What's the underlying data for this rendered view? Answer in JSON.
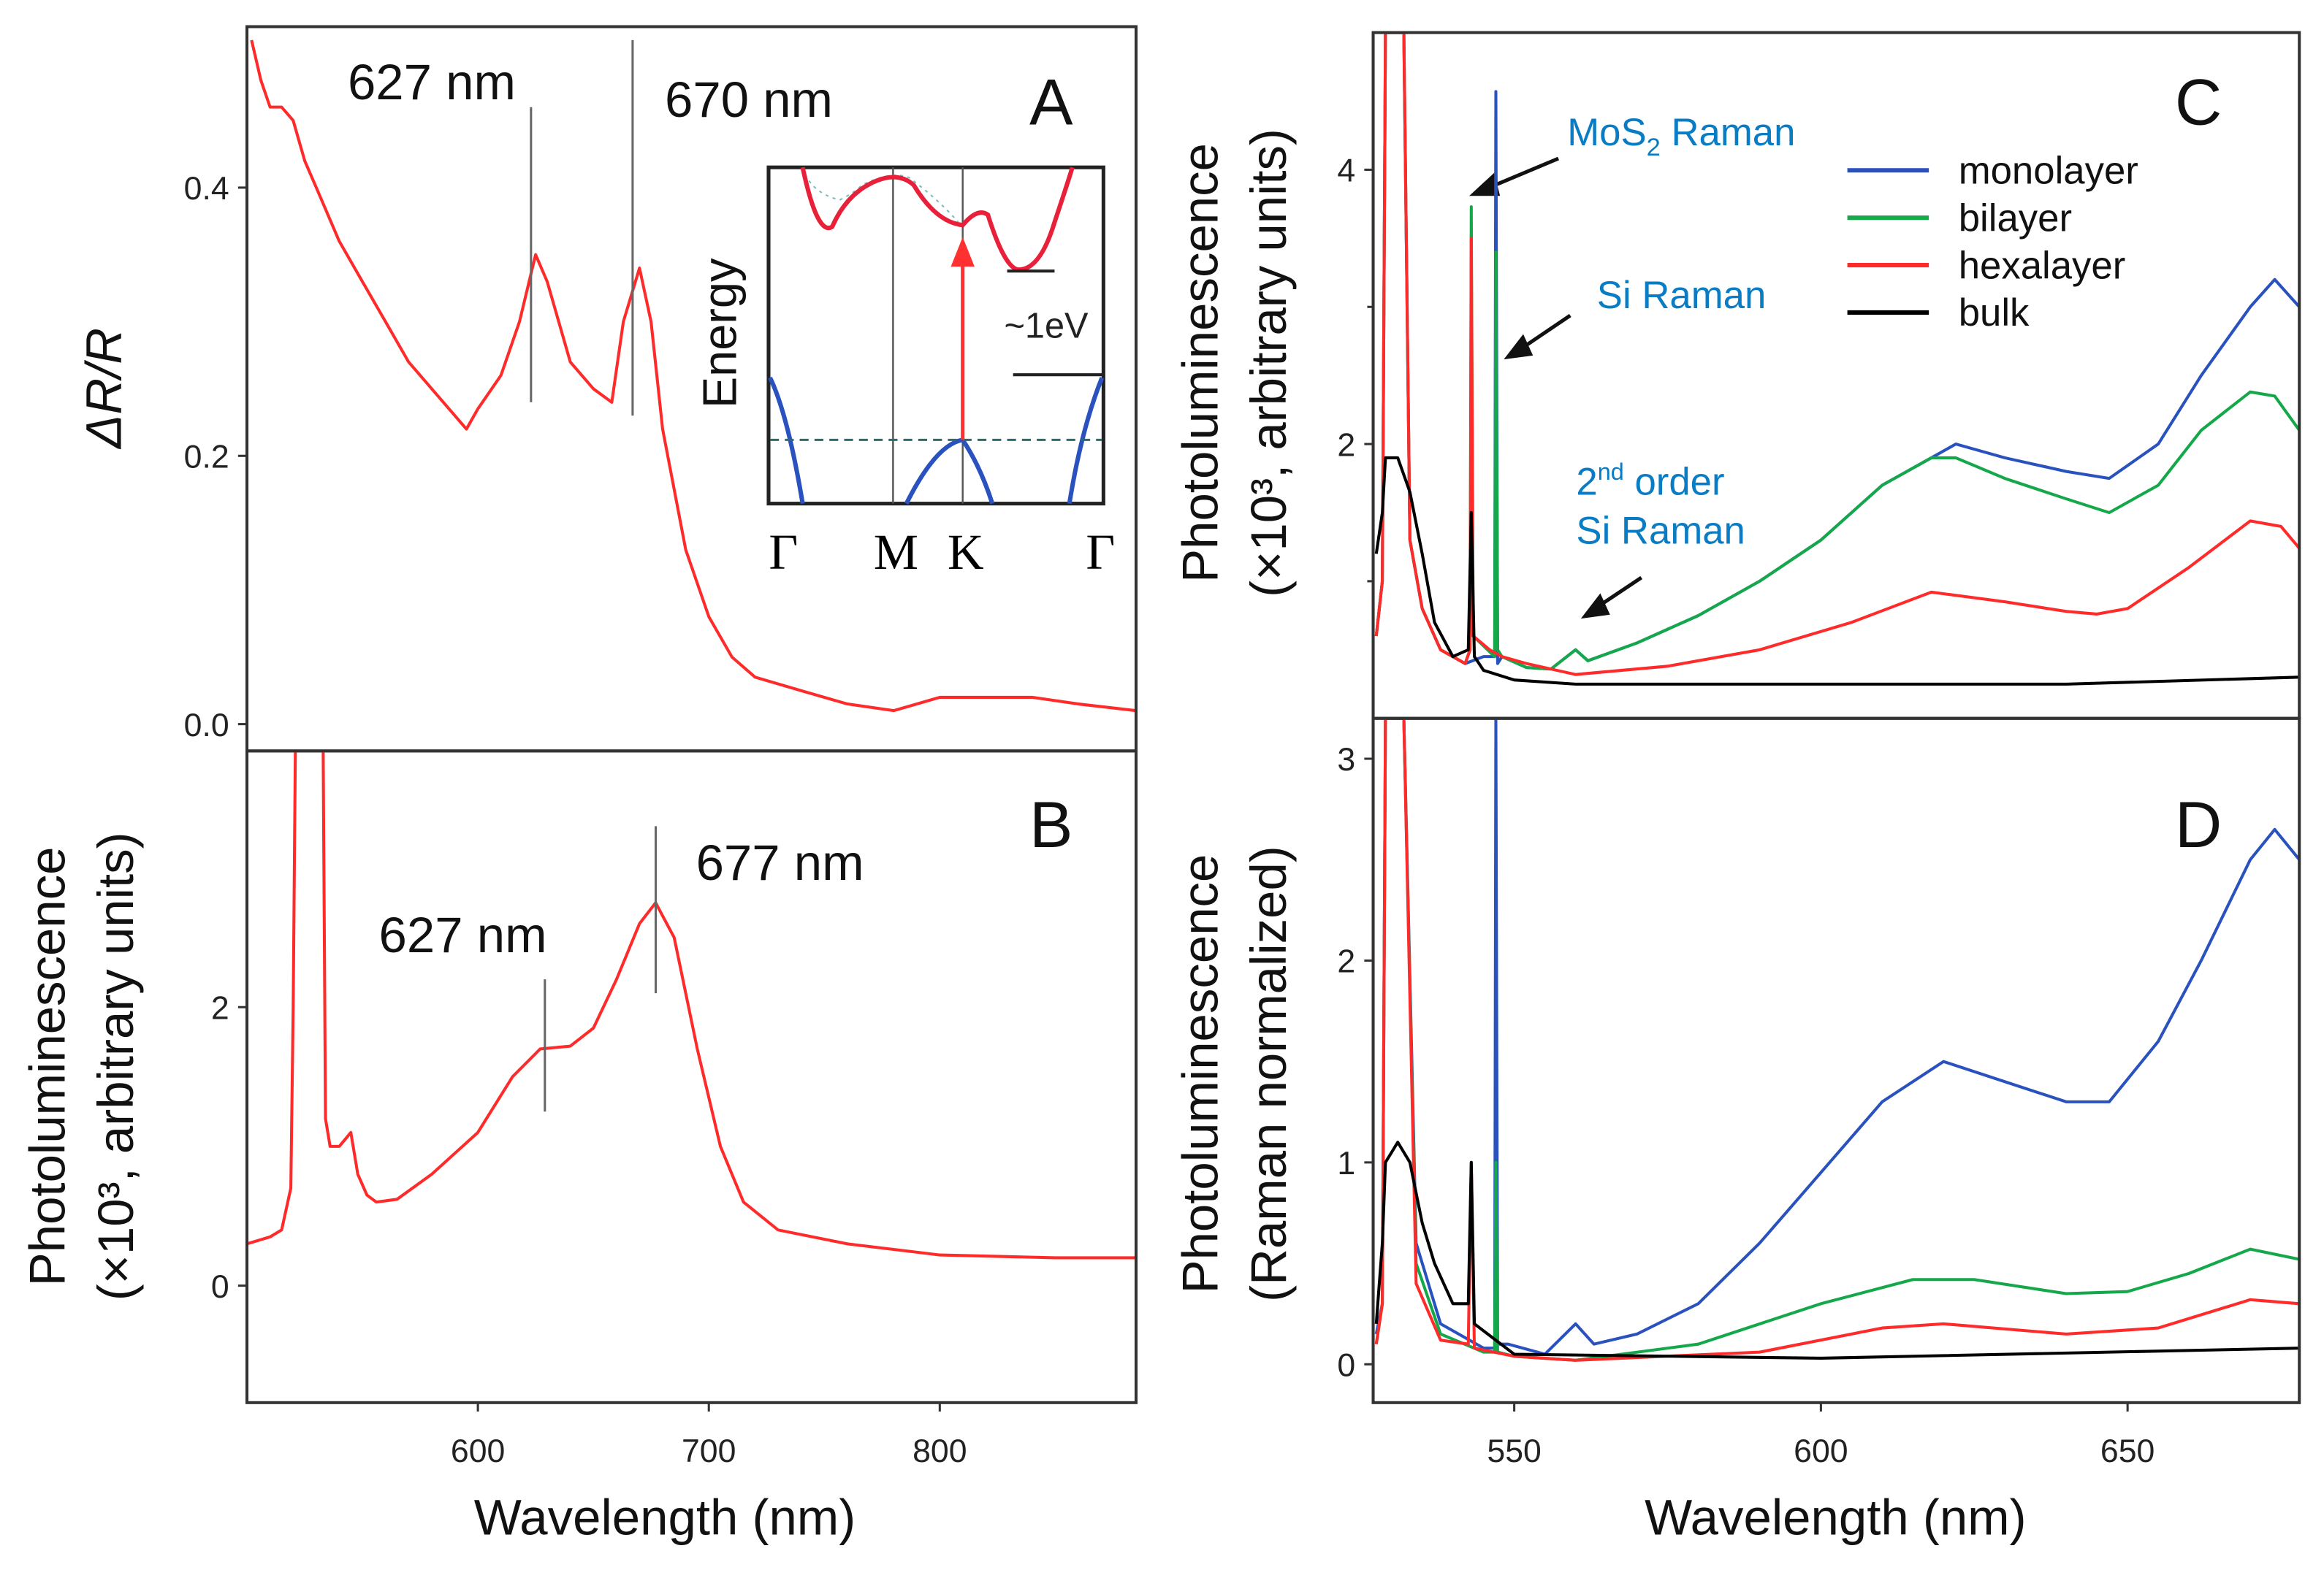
{
  "chart_data": [
    {
      "panel": "A",
      "type": "line",
      "ylabel": "ΔR/R",
      "xlim": [
        500,
        885
      ],
      "ylim": [
        -0.02,
        0.52
      ],
      "yticks": [
        0.0,
        0.2,
        0.4
      ],
      "ytick_labels": [
        "0.0",
        "0.2",
        "0.4"
      ],
      "color": "#ff2a2a",
      "x": [
        502,
        506,
        510,
        515,
        520,
        525,
        530,
        540,
        550,
        560,
        570,
        580,
        590,
        595,
        600,
        610,
        618,
        625,
        630,
        640,
        650,
        658,
        663,
        670,
        675,
        680,
        690,
        700,
        710,
        720,
        740,
        760,
        780,
        800,
        820,
        840,
        860,
        885
      ],
      "y": [
        0.51,
        0.48,
        0.46,
        0.46,
        0.45,
        0.42,
        0.4,
        0.36,
        0.33,
        0.3,
        0.27,
        0.25,
        0.23,
        0.22,
        0.235,
        0.26,
        0.3,
        0.35,
        0.33,
        0.27,
        0.25,
        0.24,
        0.3,
        0.34,
        0.3,
        0.22,
        0.13,
        0.08,
        0.05,
        0.035,
        0.025,
        0.015,
        0.01,
        0.02,
        0.02,
        0.02,
        0.015,
        0.01
      ],
      "markers": [
        {
          "x": 623,
          "y": [
            0.24,
            0.46
          ],
          "label": "627 nm"
        },
        {
          "x": 667,
          "y": [
            0.23,
            0.51
          ],
          "label": "670 nm"
        }
      ],
      "panel_label": "A",
      "inset": {
        "ylabel": "Energy",
        "k_labels": [
          "Γ",
          "M",
          "K",
          "Γ"
        ],
        "gap_label": "~1eV"
      }
    },
    {
      "panel": "B",
      "type": "line",
      "xlabel": "Wavelength (nm)",
      "ylabel": [
        "Photoluminescence",
        "(×10³, arbitrary units)"
      ],
      "xlim": [
        500,
        885
      ],
      "ylim": [
        -0.84,
        3.84
      ],
      "xticks": [
        600,
        700,
        800
      ],
      "yticks": [
        0,
        2
      ],
      "color": "#ff2a2a",
      "x": [
        500,
        510,
        515,
        519,
        520,
        521,
        533,
        534,
        536,
        540,
        545,
        548,
        552,
        556,
        565,
        580,
        600,
        615,
        627,
        640,
        650,
        660,
        670,
        677,
        685,
        695,
        705,
        715,
        730,
        760,
        800,
        850,
        885
      ],
      "y": [
        0.3,
        0.35,
        0.4,
        0.7,
        2.0,
        3.9,
        3.9,
        1.2,
        1.0,
        1.0,
        1.1,
        0.8,
        0.65,
        0.6,
        0.62,
        0.8,
        1.1,
        1.5,
        1.7,
        1.72,
        1.85,
        2.2,
        2.6,
        2.75,
        2.5,
        1.7,
        1.0,
        0.6,
        0.4,
        0.3,
        0.22,
        0.2,
        0.2
      ],
      "markers": [
        {
          "x": 629,
          "y": [
            1.25,
            2.2
          ],
          "label": "627 nm"
        },
        {
          "x": 677,
          "y": [
            2.1,
            3.3
          ],
          "label": "677 nm"
        }
      ],
      "panel_label": "B"
    },
    {
      "panel": "C",
      "type": "line",
      "ylabel": [
        "Photoluminescence",
        "(×10³, arbitrary units)"
      ],
      "xlim": [
        527,
        678
      ],
      "ylim": [
        0,
        5.0
      ],
      "yticks": [
        2,
        4
      ],
      "minor_yticks": [
        1,
        3
      ],
      "legend": "top-right",
      "series": [
        {
          "name": "monolayer",
          "color": "#2a52be",
          "x": [
            527.5,
            528.5,
            529,
            532,
            533,
            535,
            538,
            542,
            545,
            546.8,
            547,
            547.3,
            548,
            552,
            556,
            560,
            562,
            570,
            580,
            590,
            600,
            610,
            618,
            622,
            630,
            640,
            647,
            655,
            662,
            670,
            674,
            678
          ],
          "y": [
            0.6,
            1.0,
            5.0,
            5.0,
            1.3,
            0.8,
            0.5,
            0.4,
            0.45,
            0.45,
            4.57,
            0.4,
            0.45,
            0.37,
            0.36,
            0.5,
            0.42,
            0.55,
            0.75,
            1.0,
            1.3,
            1.7,
            1.9,
            2.0,
            1.9,
            1.8,
            1.75,
            2.0,
            2.5,
            3.0,
            3.2,
            3.0
          ]
        },
        {
          "name": "bilayer",
          "color": "#14a84a",
          "x": [
            527.5,
            528.5,
            529,
            532,
            533,
            535,
            538,
            542,
            542.8,
            543,
            543.3,
            546.8,
            547,
            547.3,
            548,
            552,
            556,
            560,
            562,
            570,
            580,
            590,
            600,
            610,
            618,
            622,
            630,
            640,
            647,
            655,
            662,
            670,
            674,
            678
          ],
          "y": [
            0.6,
            1.0,
            5.0,
            5.0,
            1.3,
            0.8,
            0.5,
            0.4,
            0.5,
            3.73,
            0.6,
            0.45,
            3.4,
            0.5,
            0.45,
            0.37,
            0.36,
            0.5,
            0.42,
            0.55,
            0.75,
            1.0,
            1.3,
            1.7,
            1.9,
            1.9,
            1.75,
            1.6,
            1.5,
            1.7,
            2.1,
            2.38,
            2.35,
            2.1
          ]
        },
        {
          "name": "hexalayer",
          "color": "#ff2a2a",
          "x": [
            527.5,
            528.5,
            529,
            532,
            533,
            535,
            538,
            542,
            542.8,
            543,
            543.3,
            546,
            548,
            552,
            560,
            575,
            590,
            605,
            618,
            630,
            640,
            645,
            650,
            660,
            670,
            675,
            678
          ],
          "y": [
            0.6,
            1.0,
            5.0,
            5.0,
            1.3,
            0.8,
            0.5,
            0.4,
            0.5,
            3.5,
            0.6,
            0.5,
            0.45,
            0.4,
            0.32,
            0.38,
            0.5,
            0.7,
            0.92,
            0.85,
            0.78,
            0.76,
            0.8,
            1.1,
            1.44,
            1.4,
            1.24
          ]
        },
        {
          "name": "bulk",
          "color": "#000000",
          "x": [
            527.5,
            528.5,
            529,
            531,
            533,
            535,
            537,
            540,
            542.5,
            543,
            543.5,
            545,
            550,
            560,
            600,
            640,
            678
          ],
          "y": [
            1.2,
            1.5,
            1.9,
            1.9,
            1.65,
            1.2,
            0.7,
            0.45,
            0.5,
            1.5,
            0.45,
            0.35,
            0.28,
            0.25,
            0.25,
            0.25,
            0.3
          ]
        }
      ],
      "annotations": [
        {
          "text": "MoS",
          "sub": "2",
          "after": " Raman",
          "arrow_to": [
            546,
            3.8
          ]
        },
        {
          "text": "Si Raman",
          "arrow_to": [
            548,
            2.65
          ]
        },
        {
          "text": "2",
          "sup": "nd",
          "after": " order",
          "line2": "Si Raman",
          "arrow_to": [
            560,
            0.75
          ]
        }
      ],
      "panel_label": "C"
    },
    {
      "panel": "D",
      "type": "line",
      "xlabel": "Wavelength (nm)",
      "ylabel": [
        "Photoluminescence",
        "(Raman normalized)"
      ],
      "xlim": [
        527,
        678
      ],
      "ylim": [
        -0.19,
        3.2
      ],
      "xticks": [
        550,
        600,
        650
      ],
      "yticks": [
        0,
        1,
        2,
        3
      ],
      "series": [
        {
          "name": "monolayer",
          "color": "#2a52be",
          "x": [
            527.5,
            528.5,
            529,
            532,
            534,
            538,
            545,
            546.8,
            547,
            547.3,
            549,
            555,
            560,
            563,
            570,
            580,
            590,
            600,
            610,
            620,
            630,
            640,
            647,
            655,
            662,
            670,
            674,
            678
          ],
          "y": [
            0.15,
            0.3,
            3.2,
            3.2,
            0.6,
            0.2,
            0.08,
            0.08,
            3.2,
            0.1,
            0.1,
            0.05,
            0.2,
            0.1,
            0.15,
            0.3,
            0.6,
            0.95,
            1.3,
            1.5,
            1.4,
            1.3,
            1.3,
            1.6,
            2.0,
            2.5,
            2.65,
            2.5
          ]
        },
        {
          "name": "bilayer",
          "color": "#14a84a",
          "x": [
            527.5,
            528.5,
            529,
            532,
            534,
            538,
            545,
            546.8,
            547,
            547.3,
            550,
            560,
            580,
            600,
            615,
            625,
            640,
            650,
            660,
            670,
            678
          ],
          "y": [
            0.1,
            0.3,
            3.2,
            3.2,
            0.5,
            0.15,
            0.06,
            0.06,
            1.0,
            0.06,
            0.04,
            0.02,
            0.1,
            0.3,
            0.42,
            0.42,
            0.35,
            0.36,
            0.45,
            0.57,
            0.52
          ]
        },
        {
          "name": "hexalayer",
          "color": "#ff2a2a",
          "x": [
            527.5,
            528.5,
            529,
            532,
            534,
            538,
            542.5,
            543,
            543.5,
            550,
            560,
            590,
            610,
            620,
            640,
            655,
            670,
            678
          ],
          "y": [
            0.1,
            0.3,
            3.2,
            3.2,
            0.4,
            0.12,
            0.1,
            1.0,
            0.08,
            0.04,
            0.02,
            0.06,
            0.18,
            0.2,
            0.15,
            0.18,
            0.32,
            0.3
          ]
        },
        {
          "name": "bulk",
          "color": "#000000",
          "x": [
            527.5,
            528.5,
            529,
            531,
            533,
            535,
            537,
            540,
            542.5,
            543,
            543.5,
            550,
            600,
            678
          ],
          "y": [
            0.2,
            0.6,
            1.0,
            1.1,
            1.0,
            0.7,
            0.5,
            0.3,
            0.3,
            1.0,
            0.2,
            0.05,
            0.03,
            0.08
          ]
        }
      ],
      "panel_label": "D"
    }
  ]
}
